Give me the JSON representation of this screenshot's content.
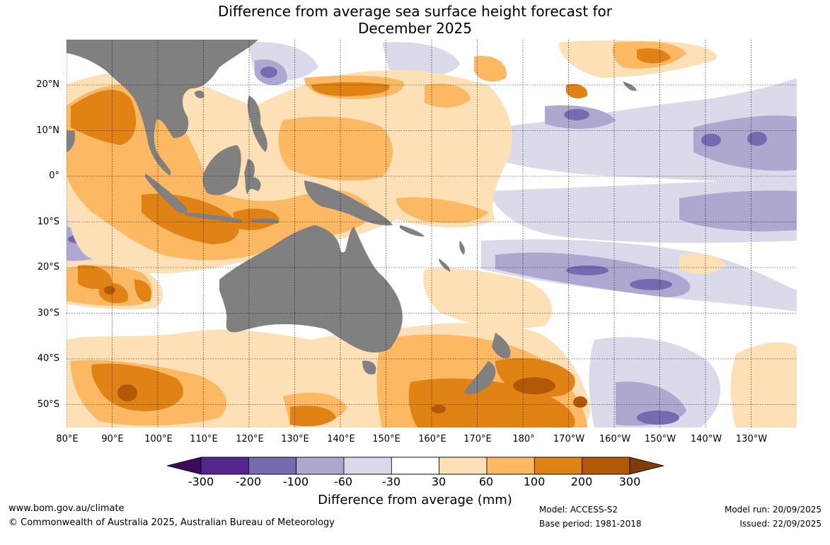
{
  "title": {
    "line1": "Difference from average sea surface height forecast for",
    "line2": "December 2025"
  },
  "map": {
    "lat_labels": [
      "20°N",
      "10°N",
      "0°",
      "10°S",
      "20°S",
      "30°S",
      "40°S",
      "50°S"
    ],
    "lon_labels": [
      "80°E",
      "90°E",
      "100°E",
      "110°E",
      "120°E",
      "130°E",
      "140°E",
      "150°E",
      "160°E",
      "170°E",
      "180°",
      "170°W",
      "160°W",
      "150°W",
      "140°W",
      "130°W"
    ],
    "land_color": "#808080",
    "colors": {
      "neg300": "#3f0a5b",
      "neg200": "#54278f",
      "neg100": "#756bb1",
      "neg60": "#aea8d1",
      "neg30": "#dadaeb",
      "zero": "#ffffff",
      "pos30": "#fee0b6",
      "pos60": "#fdb863",
      "pos100": "#e08214",
      "pos200": "#b35806",
      "pos300": "#7f3b08"
    }
  },
  "colorbar": {
    "ticks": [
      "-300",
      "-200",
      "-100",
      "-60",
      "-30",
      "30",
      "60",
      "100",
      "200",
      "300"
    ],
    "colors": [
      "#54278f",
      "#756bb1",
      "#aea8d1",
      "#dadaeb",
      "#ffffff",
      "#fee0b6",
      "#fdb863",
      "#e08214",
      "#b35806"
    ],
    "low_extend_color": "#3f0a5b",
    "high_extend_color": "#7f3b08",
    "title": "Difference from average (mm)"
  },
  "footer": {
    "website": "www.bom.gov.au/climate",
    "copyright": "© Commonwealth of Australia 2025, Australian Bureau of Meteorology",
    "model": "Model: ACCESS-S2",
    "base_period": "Base period: 1981-2018",
    "model_run": "Model run: 20/09/2025",
    "issued": "Issued: 22/09/2025"
  }
}
